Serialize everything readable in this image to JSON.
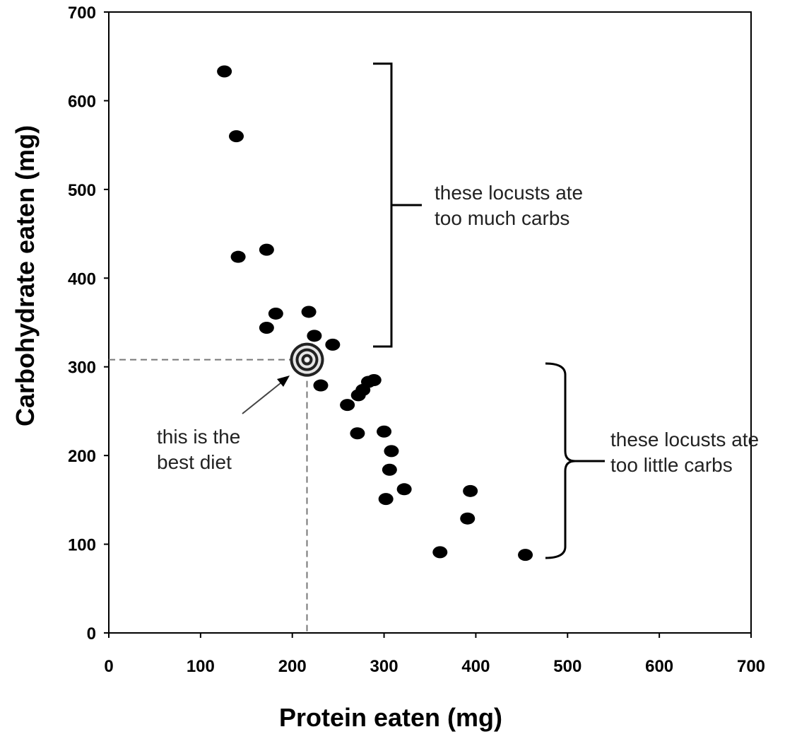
{
  "chart_data": {
    "type": "scatter",
    "title": "",
    "xlabel": "Protein eaten (mg)",
    "ylabel": "Carbohydrate eaten (mg)",
    "xlim": [
      0,
      700
    ],
    "ylim": [
      0,
      700
    ],
    "x_ticks": [
      "0",
      "100",
      "200",
      "300",
      "400",
      "500",
      "600",
      "700"
    ],
    "y_ticks": [
      "0",
      "100",
      "200",
      "300",
      "400",
      "500",
      "600",
      "700"
    ],
    "grid": false,
    "series": [
      {
        "points": [
          {
            "x": 126,
            "y": 633
          },
          {
            "x": 139,
            "y": 560
          },
          {
            "x": 141,
            "y": 424
          },
          {
            "x": 172,
            "y": 432
          },
          {
            "x": 182,
            "y": 360
          },
          {
            "x": 172,
            "y": 344
          },
          {
            "x": 218,
            "y": 362
          },
          {
            "x": 224,
            "y": 335
          },
          {
            "x": 244,
            "y": 325
          },
          {
            "x": 231,
            "y": 279
          },
          {
            "x": 260,
            "y": 257
          },
          {
            "x": 272,
            "y": 268
          },
          {
            "x": 277,
            "y": 274
          },
          {
            "x": 283,
            "y": 283
          },
          {
            "x": 289,
            "y": 285
          },
          {
            "x": 271,
            "y": 225
          },
          {
            "x": 300,
            "y": 227
          },
          {
            "x": 308,
            "y": 205
          },
          {
            "x": 306,
            "y": 184
          },
          {
            "x": 322,
            "y": 162
          },
          {
            "x": 302,
            "y": 151
          },
          {
            "x": 394,
            "y": 160
          },
          {
            "x": 391,
            "y": 129
          },
          {
            "x": 361,
            "y": 91
          },
          {
            "x": 454,
            "y": 88
          }
        ]
      }
    ],
    "optimum": {
      "x": 216,
      "y": 308
    },
    "annotations": [
      {
        "text": [
          "these locusts ate",
          "too much carbs"
        ]
      },
      {
        "text": [
          "these locusts ate",
          "too little carbs"
        ]
      },
      {
        "text": [
          "this is the",
          "best diet"
        ]
      }
    ]
  }
}
